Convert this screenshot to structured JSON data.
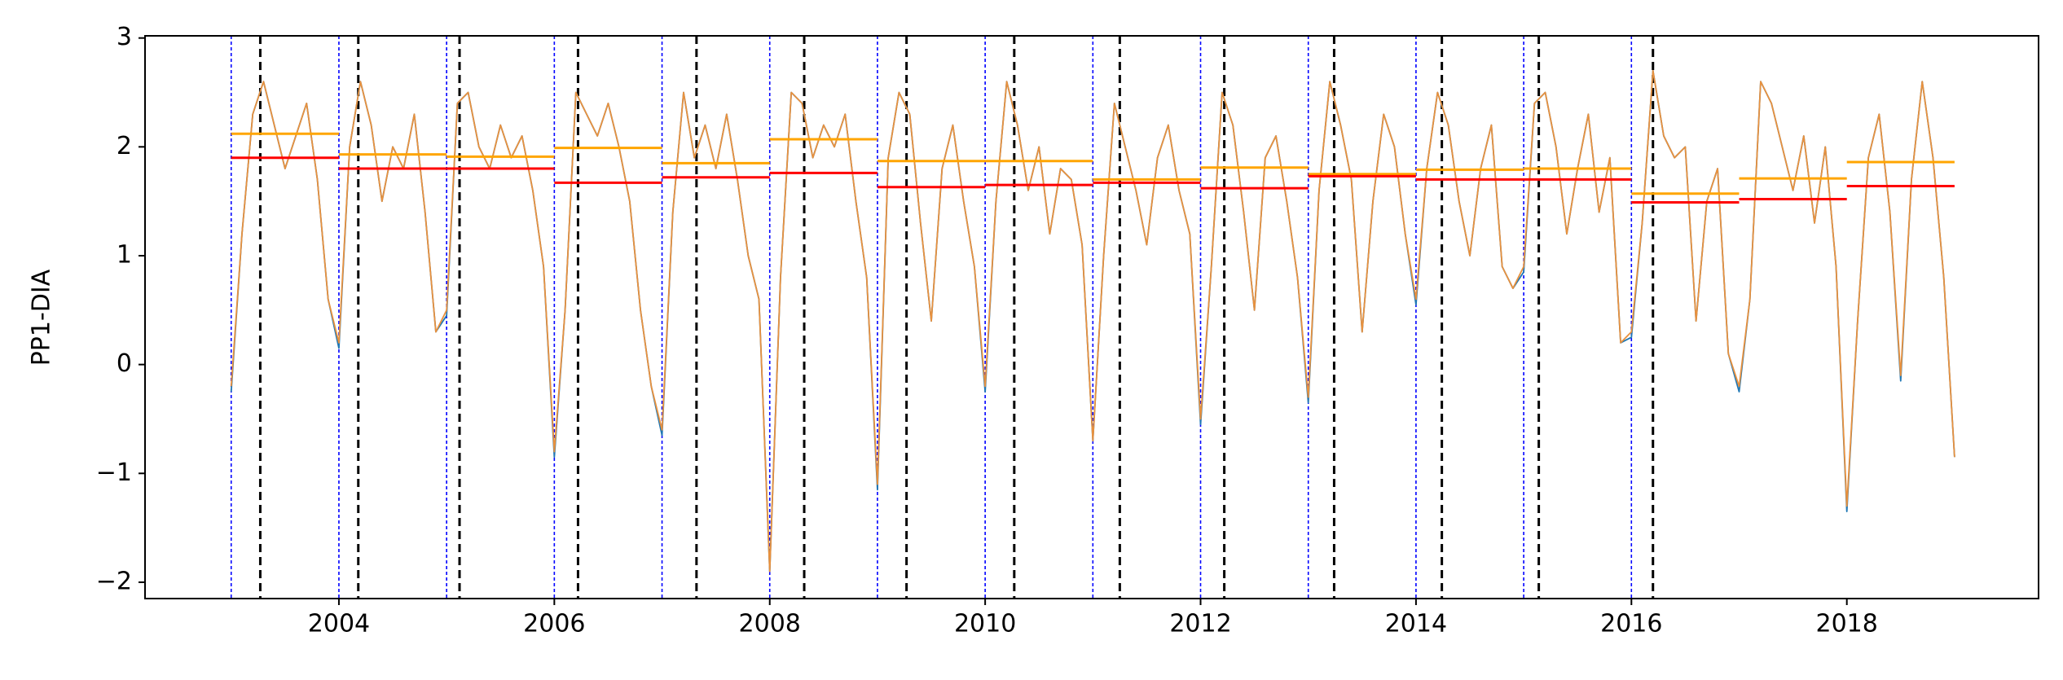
{
  "chart_data": {
    "type": "line",
    "ylabel": "PP1-DIA",
    "xlim": [
      2002.2,
      2019.78
    ],
    "ylim": [
      -2.15,
      3.02
    ],
    "xticks": [
      2004,
      2006,
      2008,
      2010,
      2012,
      2014,
      2016,
      2018
    ],
    "yticks": [
      {
        "value": -2,
        "label": "−2"
      },
      {
        "value": -1,
        "label": "−1"
      },
      0,
      1,
      2,
      3
    ],
    "x": [
      2003.0,
      2003.1,
      2003.2,
      2003.3,
      2003.4,
      2003.5,
      2003.6,
      2003.7,
      2003.8,
      2003.9,
      2004.0,
      2004.1,
      2004.2,
      2004.3,
      2004.4,
      2004.5,
      2004.6,
      2004.7,
      2004.8,
      2004.9,
      2005.0,
      2005.1,
      2005.2,
      2005.3,
      2005.4,
      2005.5,
      2005.6,
      2005.7,
      2005.8,
      2005.9,
      2006.0,
      2006.1,
      2006.2,
      2006.3,
      2006.4,
      2006.5,
      2006.6,
      2006.7,
      2006.8,
      2006.9,
      2007.0,
      2007.1,
      2007.2,
      2007.3,
      2007.4,
      2007.5,
      2007.6,
      2007.7,
      2007.8,
      2007.9,
      2008.0,
      2008.1,
      2008.2,
      2008.3,
      2008.4,
      2008.5,
      2008.6,
      2008.7,
      2008.8,
      2008.9,
      2009.0,
      2009.1,
      2009.2,
      2009.3,
      2009.4,
      2009.5,
      2009.6,
      2009.7,
      2009.8,
      2009.9,
      2010.0,
      2010.1,
      2010.2,
      2010.3,
      2010.4,
      2010.5,
      2010.6,
      2010.7,
      2010.8,
      2010.9,
      2011.0,
      2011.1,
      2011.2,
      2011.3,
      2011.4,
      2011.5,
      2011.6,
      2011.7,
      2011.8,
      2011.9,
      2012.0,
      2012.1,
      2012.2,
      2012.3,
      2012.4,
      2012.5,
      2012.6,
      2012.7,
      2012.8,
      2012.9,
      2013.0,
      2013.1,
      2013.2,
      2013.3,
      2013.4,
      2013.5,
      2013.6,
      2013.7,
      2013.8,
      2013.9,
      2014.0,
      2014.1,
      2014.2,
      2014.3,
      2014.4,
      2014.5,
      2014.6,
      2014.7,
      2014.8,
      2014.9,
      2015.0,
      2015.1,
      2015.2,
      2015.3,
      2015.4,
      2015.5,
      2015.6,
      2015.7,
      2015.8,
      2015.9,
      2016.0,
      2016.1,
      2016.2,
      2016.3,
      2016.4,
      2016.5,
      2016.6,
      2016.7,
      2016.8,
      2016.9,
      2017.0,
      2017.1,
      2017.2,
      2017.3,
      2017.4,
      2017.5,
      2017.6,
      2017.7,
      2017.8,
      2017.9,
      2018.0,
      2018.1,
      2018.2,
      2018.3,
      2018.4,
      2018.5,
      2018.6,
      2018.7,
      2018.8,
      2018.9,
      2019.0
    ],
    "series": [
      {
        "color": "#1f77b4",
        "values": [
          -0.25,
          1.2,
          2.3,
          2.6,
          2.2,
          1.8,
          2.1,
          2.4,
          1.7,
          0.6,
          0.15,
          2.0,
          2.6,
          2.2,
          1.5,
          2.0,
          1.8,
          2.3,
          1.4,
          0.3,
          0.45,
          2.4,
          2.5,
          2.0,
          1.8,
          2.2,
          1.9,
          2.1,
          1.6,
          0.9,
          -0.85,
          0.5,
          2.5,
          2.3,
          2.1,
          2.4,
          2.0,
          1.5,
          0.5,
          -0.2,
          -0.65,
          1.4,
          2.5,
          1.9,
          2.2,
          1.8,
          2.3,
          1.7,
          1.0,
          0.6,
          -1.9,
          0.8,
          2.5,
          2.4,
          1.9,
          2.2,
          2.0,
          2.3,
          1.5,
          0.8,
          -1.15,
          1.9,
          2.5,
          2.3,
          1.3,
          0.4,
          1.8,
          2.2,
          1.5,
          0.9,
          -0.25,
          1.5,
          2.6,
          2.2,
          1.6,
          2.0,
          1.2,
          1.8,
          1.7,
          1.1,
          -0.7,
          1.0,
          2.4,
          2.0,
          1.6,
          1.1,
          1.9,
          2.2,
          1.6,
          1.2,
          -0.55,
          0.9,
          2.5,
          2.2,
          1.4,
          0.5,
          1.9,
          2.1,
          1.5,
          0.8,
          -0.35,
          1.6,
          2.6,
          2.2,
          1.7,
          0.3,
          1.5,
          2.3,
          2.0,
          1.2,
          0.55,
          1.8,
          2.5,
          2.2,
          1.5,
          1.0,
          1.8,
          2.2,
          0.9,
          0.7,
          0.85,
          2.4,
          2.5,
          2.0,
          1.2,
          1.8,
          2.3,
          1.4,
          1.9,
          0.2,
          0.25,
          1.3,
          2.7,
          2.1,
          1.9,
          2.0,
          0.4,
          1.5,
          1.8,
          0.1,
          -0.25,
          0.6,
          2.6,
          2.4,
          2.0,
          1.6,
          2.1,
          1.3,
          2.0,
          0.9,
          -1.35,
          0.4,
          1.9,
          2.3,
          1.4,
          -0.15,
          1.7,
          2.6,
          1.9,
          0.8,
          -0.85
        ]
      },
      {
        "color": "#e8913e",
        "values": [
          -0.2,
          1.2,
          2.3,
          2.6,
          2.2,
          1.8,
          2.1,
          2.4,
          1.7,
          0.6,
          0.2,
          2.0,
          2.6,
          2.2,
          1.5,
          2.0,
          1.8,
          2.3,
          1.4,
          0.3,
          0.5,
          2.4,
          2.5,
          2.0,
          1.8,
          2.2,
          1.9,
          2.1,
          1.6,
          0.9,
          -0.8,
          0.5,
          2.5,
          2.3,
          2.1,
          2.4,
          2.0,
          1.5,
          0.5,
          -0.2,
          -0.6,
          1.4,
          2.5,
          1.9,
          2.2,
          1.8,
          2.3,
          1.7,
          1.0,
          0.6,
          -1.9,
          0.8,
          2.5,
          2.4,
          1.9,
          2.2,
          2.0,
          2.3,
          1.5,
          0.8,
          -1.1,
          1.9,
          2.5,
          2.3,
          1.3,
          0.4,
          1.8,
          2.2,
          1.5,
          0.9,
          -0.2,
          1.5,
          2.6,
          2.2,
          1.6,
          2.0,
          1.2,
          1.8,
          1.7,
          1.1,
          -0.7,
          1.0,
          2.4,
          2.0,
          1.6,
          1.1,
          1.9,
          2.2,
          1.6,
          1.2,
          -0.5,
          0.9,
          2.5,
          2.2,
          1.4,
          0.5,
          1.9,
          2.1,
          1.5,
          0.8,
          -0.3,
          1.6,
          2.6,
          2.2,
          1.7,
          0.3,
          1.5,
          2.3,
          2.0,
          1.2,
          0.6,
          1.8,
          2.5,
          2.2,
          1.5,
          1.0,
          1.8,
          2.2,
          0.9,
          0.7,
          0.9,
          2.4,
          2.5,
          2.0,
          1.2,
          1.8,
          2.3,
          1.4,
          1.9,
          0.2,
          0.3,
          1.3,
          2.7,
          2.1,
          1.9,
          2.0,
          0.4,
          1.5,
          1.8,
          0.1,
          -0.2,
          0.6,
          2.6,
          2.4,
          2.0,
          1.6,
          2.1,
          1.3,
          2.0,
          0.9,
          -1.3,
          0.4,
          1.9,
          2.3,
          1.4,
          -0.1,
          1.7,
          2.6,
          1.9,
          0.8,
          -0.85
        ]
      }
    ],
    "segment_starts": [
      2003,
      2004,
      2005,
      2006,
      2007,
      2008,
      2009,
      2010,
      2011,
      2012,
      2013,
      2014,
      2015,
      2016,
      2017,
      2018
    ],
    "segment_ends": [
      2004,
      2005,
      2006,
      2007,
      2008,
      2009,
      2010,
      2011,
      2012,
      2013,
      2014,
      2015,
      2016,
      2017,
      2018,
      2019
    ],
    "segments": [
      {
        "color": "#ffa500",
        "values": [
          2.12,
          1.93,
          1.91,
          1.99,
          1.85,
          2.07,
          1.87,
          1.87,
          1.7,
          1.81,
          1.75,
          1.79,
          1.8,
          1.57,
          1.71,
          1.86
        ]
      },
      {
        "color": "#ff0000",
        "values": [
          1.9,
          1.8,
          1.8,
          1.67,
          1.72,
          1.76,
          1.63,
          1.65,
          1.67,
          1.62,
          1.73,
          1.7,
          1.7,
          1.49,
          1.52,
          1.64
        ]
      }
    ],
    "vlines": [
      {
        "color": "#0000ff",
        "style": "dotted",
        "x": [
          2003,
          2004,
          2005,
          2006,
          2007,
          2008,
          2009,
          2010,
          2011,
          2012,
          2013,
          2014,
          2015,
          2016
        ]
      },
      {
        "color": "#000000",
        "style": "dashed",
        "x": [
          2003.27,
          2004.18,
          2005.12,
          2006.22,
          2007.32,
          2008.32,
          2009.27,
          2010.27,
          2011.25,
          2012.22,
          2013.24,
          2014.24,
          2015.14,
          2016.2
        ]
      }
    ]
  }
}
